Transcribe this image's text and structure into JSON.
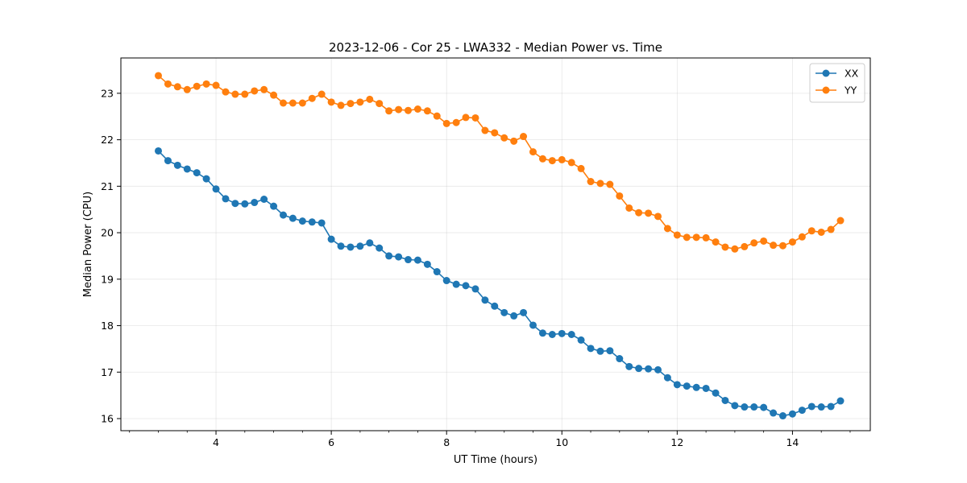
{
  "chart_data": {
    "type": "line",
    "title": "2023-12-06 - Cor 25 - LWA332 - Median Power vs. Time",
    "xlabel": "UT Time (hours)",
    "ylabel": "Median Power (CPU)",
    "xlim": [
      2.35,
      15.35
    ],
    "ylim": [
      15.74,
      23.76
    ],
    "xticks": [
      4,
      6,
      8,
      10,
      12,
      14
    ],
    "xtick_labels": [
      "4",
      "6",
      "8",
      "10",
      "12",
      "14"
    ],
    "yticks": [
      16,
      17,
      18,
      19,
      20,
      21,
      22,
      23
    ],
    "ytick_labels": [
      "16",
      "17",
      "18",
      "19",
      "20",
      "21",
      "22",
      "23"
    ],
    "grid": true,
    "legend_position": "top-right",
    "x": [
      3.0,
      3.167,
      3.333,
      3.5,
      3.667,
      3.833,
      4.0,
      4.167,
      4.333,
      4.5,
      4.667,
      4.833,
      5.0,
      5.167,
      5.333,
      5.5,
      5.667,
      5.833,
      6.0,
      6.167,
      6.333,
      6.5,
      6.667,
      6.833,
      7.0,
      7.167,
      7.333,
      7.5,
      7.667,
      7.833,
      8.0,
      8.167,
      8.333,
      8.5,
      8.667,
      8.833,
      9.0,
      9.167,
      9.333,
      9.5,
      9.667,
      9.833,
      10.0,
      10.167,
      10.333,
      10.5,
      10.667,
      10.833,
      11.0,
      11.167,
      11.333,
      11.5,
      11.667,
      11.833,
      12.0,
      12.167,
      12.333,
      12.5,
      12.667,
      12.833,
      13.0,
      13.167,
      13.333,
      13.5,
      13.667,
      13.833,
      14.0,
      14.167,
      14.333,
      14.5,
      14.667,
      14.833
    ],
    "series": [
      {
        "name": "XX",
        "color": "#1f77b4",
        "values": [
          21.76,
          21.55,
          21.45,
          21.37,
          21.29,
          21.16,
          20.94,
          20.73,
          20.63,
          20.62,
          20.65,
          20.72,
          20.57,
          20.38,
          20.31,
          20.25,
          20.23,
          20.21,
          19.86,
          19.71,
          19.69,
          19.71,
          19.78,
          19.67,
          19.5,
          19.48,
          19.42,
          19.41,
          19.32,
          19.16,
          18.97,
          18.89,
          18.86,
          18.79,
          18.55,
          18.42,
          18.28,
          18.21,
          18.28,
          18.01,
          17.84,
          17.81,
          17.83,
          17.81,
          17.69,
          17.51,
          17.45,
          17.46,
          17.29,
          17.12,
          17.08,
          17.07,
          17.05,
          16.88,
          16.73,
          16.7,
          16.67,
          16.65,
          16.55,
          16.39,
          16.28,
          16.25,
          16.25,
          16.24,
          16.12,
          16.06,
          16.1,
          16.18,
          16.26,
          16.25,
          16.26,
          16.38
        ]
      },
      {
        "name": "YY",
        "color": "#ff7f0e",
        "values": [
          23.38,
          23.2,
          23.14,
          23.08,
          23.15,
          23.2,
          23.17,
          23.03,
          22.98,
          22.98,
          23.05,
          23.08,
          22.96,
          22.79,
          22.79,
          22.79,
          22.89,
          22.98,
          22.81,
          22.74,
          22.78,
          22.81,
          22.87,
          22.78,
          22.62,
          22.65,
          22.63,
          22.66,
          22.62,
          22.51,
          22.35,
          22.37,
          22.48,
          22.47,
          22.2,
          22.15,
          22.04,
          21.97,
          22.07,
          21.74,
          21.59,
          21.55,
          21.57,
          21.51,
          21.38,
          21.1,
          21.06,
          21.04,
          20.79,
          20.53,
          20.43,
          20.42,
          20.35,
          20.09,
          19.95,
          19.9,
          19.9,
          19.89,
          19.8,
          19.69,
          19.65,
          19.7,
          19.78,
          19.82,
          19.73,
          19.72,
          19.8,
          19.91,
          20.04,
          20.01,
          20.07,
          20.26
        ]
      }
    ]
  }
}
